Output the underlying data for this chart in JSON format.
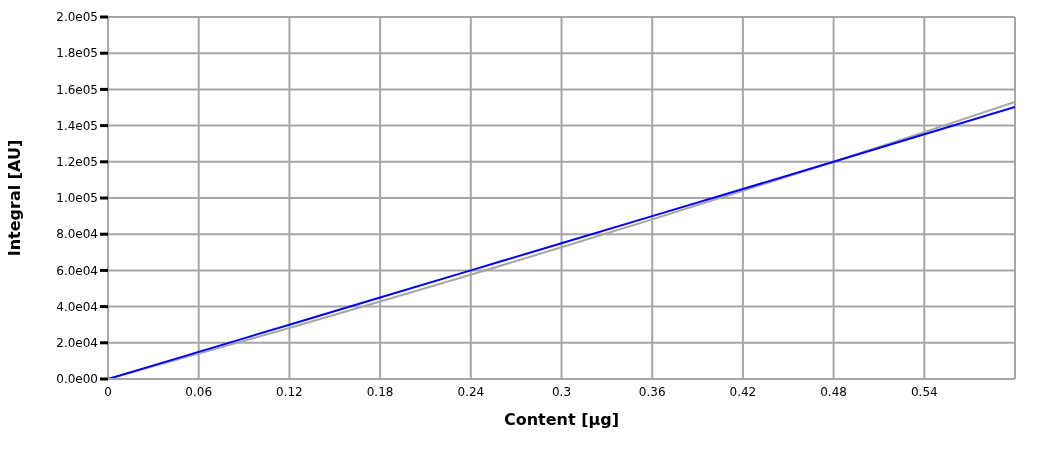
{
  "chart_data": {
    "type": "line",
    "xlabel": "Content [µg]",
    "ylabel": "Integral [AU]",
    "xlim": [
      0,
      0.6
    ],
    "xticks": [
      0,
      0.06,
      0.12,
      0.18,
      0.24,
      0.3,
      0.36,
      0.42,
      0.48,
      0.54
    ],
    "ylim": [
      0,
      200000
    ],
    "yticks": [
      {
        "value": 0,
        "label": "0.0e00"
      },
      {
        "value": 20000,
        "label": "2.0e04"
      },
      {
        "value": 40000,
        "label": "4.0e04"
      },
      {
        "value": 60000,
        "label": "6.0e04"
      },
      {
        "value": 80000,
        "label": "8.0e04"
      },
      {
        "value": 100000,
        "label": "1.0e05"
      },
      {
        "value": 120000,
        "label": "1.2e05"
      },
      {
        "value": 140000,
        "label": "1.4e05"
      },
      {
        "value": 160000,
        "label": "1.6e05"
      },
      {
        "value": 180000,
        "label": "1.8e05"
      },
      {
        "value": 200000,
        "label": "2.0e05"
      }
    ],
    "grid": true,
    "marker": "none",
    "line_style": "solid",
    "series": [
      {
        "color": "#a6a6a6",
        "x": [
          0,
          0.06,
          0.12,
          0.18,
          0.24,
          0.3,
          0.36,
          0.42,
          0.48,
          0.54,
          0.6
        ],
        "values": [
          0,
          14000,
          28200,
          42800,
          57600,
          72800,
          88200,
          104000,
          120000,
          136400,
          153000
        ]
      },
      {
        "color": "#0000ff",
        "x": [
          0,
          0.06,
          0.12,
          0.18,
          0.24,
          0.3,
          0.36,
          0.42,
          0.48,
          0.54,
          0.6
        ],
        "values": [
          0,
          15000,
          30000,
          45000,
          60000,
          75000,
          90000,
          105000,
          120000,
          135200,
          150300
        ]
      }
    ]
  }
}
